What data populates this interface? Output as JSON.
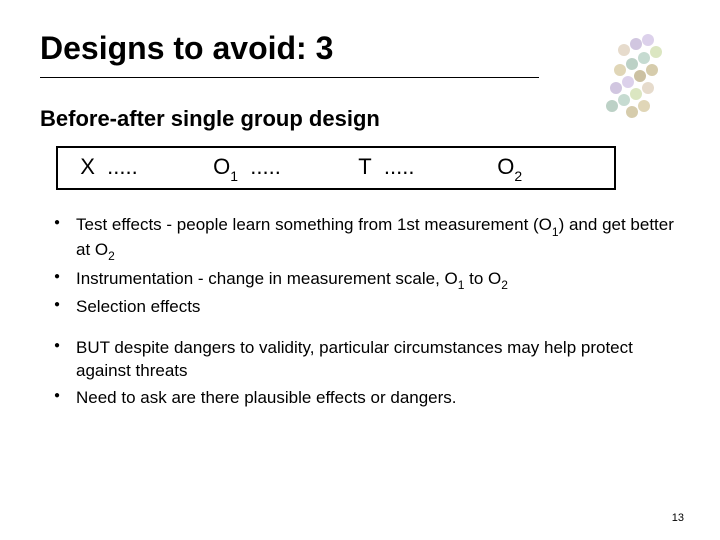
{
  "title": "Designs to avoid: 3",
  "subtitle": "Before-after single group design",
  "notation": {
    "c1_label": "X",
    "c1_dots": ".....",
    "c2_label": "O",
    "c2_sub": "1",
    "c2_dots": ".....",
    "c3_label": "T",
    "c3_dots": ".....",
    "c4_label": "O",
    "c4_sub": "2"
  },
  "bullets": {
    "b1a": "Test effects - people learn something from 1st measurement (O",
    "b1sub1": "1",
    "b1b": ") and get better at O",
    "b1sub2": "2",
    "b2a": "Instrumentation - change in measurement scale, O",
    "b2sub1": "1",
    "b2b": " to O",
    "b2sub2": "2",
    "b3": "Selection effects",
    "b4": "BUT despite dangers to validity, particular circumstances may help protect against  threats",
    "b5": "Need to ask are there plausible effects or dangers."
  },
  "page_number": "13",
  "deco": {
    "dot_colors": [
      "#c9b8e0",
      "#b8a8d0",
      "#d8c8b0",
      "#c8d8a0",
      "#a8c8b8",
      "#98b8a8",
      "#d0c090",
      "#c0b080",
      "#b0a070"
    ],
    "dot_r": 6
  }
}
